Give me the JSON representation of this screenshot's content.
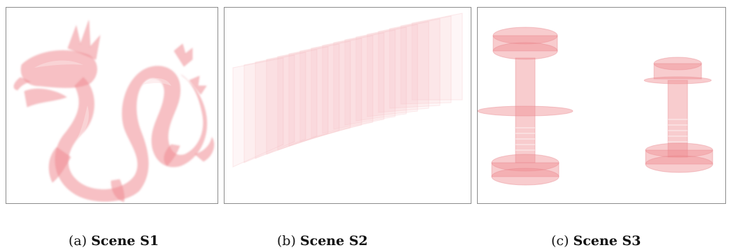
{
  "figures": [
    {
      "label": "(a)",
      "title": "Scene S1",
      "content": "dragon-render"
    },
    {
      "label": "(b)",
      "title": "Scene S2",
      "content": "stacked-planes-render"
    },
    {
      "label": "(c)",
      "title": "Scene S3",
      "content": "bolts-render"
    }
  ],
  "colors": {
    "render_fill": "#f08d93",
    "render_light": "#fbe2e3",
    "border": "#8c8c8c"
  }
}
